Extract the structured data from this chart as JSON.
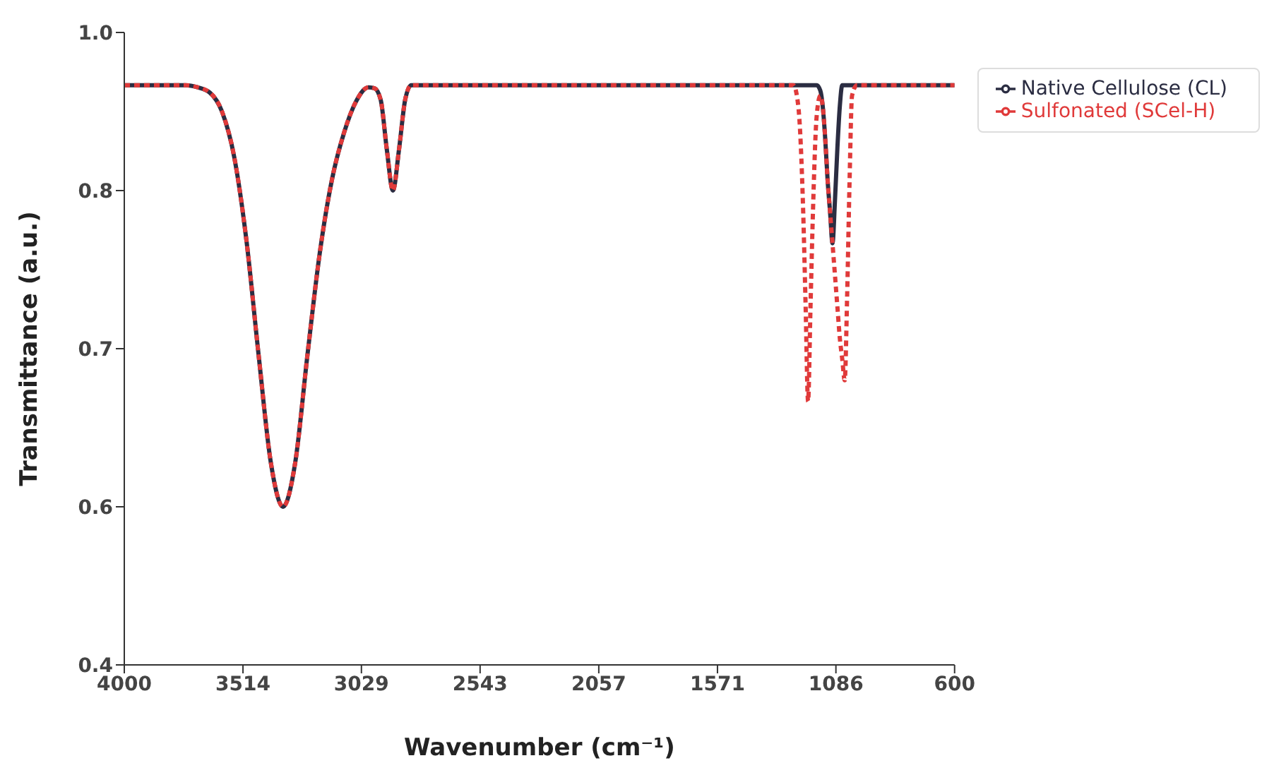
{
  "chart_data": {
    "type": "line",
    "xlabel": "Wavenumber (cm⁻¹)",
    "ylabel": "Transmittance (a.u.)",
    "x": [
      4000,
      3750,
      3700,
      3650,
      3600,
      3550,
      3500,
      3450,
      3400,
      3350,
      3300,
      3250,
      3200,
      3150,
      3100,
      3050,
      3000,
      2975,
      2950,
      2925,
      2900,
      2875,
      2850,
      2825,
      2750,
      1300,
      1260,
      1240,
      1220,
      1210,
      1200,
      1190,
      1180,
      1165,
      1150,
      1140,
      1130,
      1120,
      1110,
      1100,
      1090,
      1080,
      1070,
      1060,
      1050,
      1040,
      1030,
      1020,
      1000,
      600
    ],
    "series": [
      {
        "name": "Native Cellulose (CL)",
        "color": "#2b2d42",
        "line_style": "solid",
        "values": [
          0.95,
          0.95,
          0.948,
          0.943,
          0.925,
          0.882,
          0.803,
          0.694,
          0.592,
          0.55,
          0.592,
          0.694,
          0.79,
          0.86,
          0.905,
          0.935,
          0.948,
          0.947,
          0.936,
          0.889,
          0.85,
          0.889,
          0.936,
          0.95,
          0.95,
          0.95,
          0.95,
          0.95,
          0.95,
          0.95,
          0.95,
          0.95,
          0.95,
          0.95,
          0.945,
          0.93,
          0.9,
          0.86,
          0.83,
          0.8,
          0.84,
          0.89,
          0.93,
          0.95,
          0.95,
          0.95,
          0.95,
          0.95,
          0.95,
          0.95
        ]
      },
      {
        "name": "Sulfonated (SCel-H)",
        "color": "#e03a3a",
        "line_style": "dotted",
        "values": [
          0.95,
          0.95,
          0.948,
          0.943,
          0.925,
          0.882,
          0.803,
          0.694,
          0.592,
          0.55,
          0.592,
          0.694,
          0.79,
          0.86,
          0.905,
          0.935,
          0.948,
          0.947,
          0.936,
          0.889,
          0.85,
          0.889,
          0.936,
          0.95,
          0.95,
          0.95,
          0.95,
          0.93,
          0.83,
          0.74,
          0.65,
          0.74,
          0.83,
          0.92,
          0.94,
          0.93,
          0.9,
          0.86,
          0.83,
          0.8,
          0.77,
          0.74,
          0.71,
          0.69,
          0.67,
          0.75,
          0.86,
          0.94,
          0.95,
          0.95
        ]
      }
    ],
    "xlim": [
      4000,
      600
    ],
    "xticks": [
      4000,
      3514,
      3029,
      2543,
      2057,
      1571,
      1086,
      600
    ],
    "ylim": [
      0.4,
      1.0
    ],
    "yticks": [
      0.4,
      {
        "value": 0.55,
        "label": "0.6"
      },
      0.7,
      {
        "value": 0.85,
        "label": "0.8"
      },
      {
        "value": 1,
        "label": "1.0"
      }
    ],
    "grid": false,
    "legend": "top right",
    "marker": "none"
  }
}
